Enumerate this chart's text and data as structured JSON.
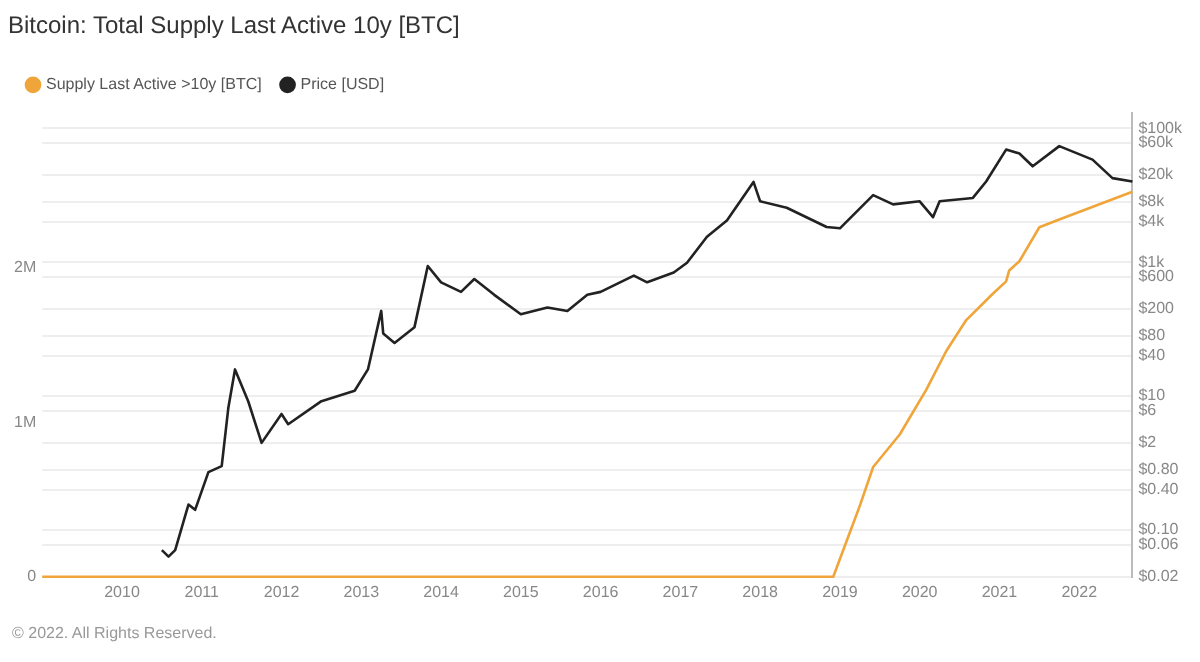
{
  "chart_data": {
    "type": "line",
    "title": "Bitcoin: Total Supply Last Active 10y [BTC]",
    "xlim": [
      "2009-01",
      "2022-09"
    ],
    "xticks": [
      "2010",
      "2011",
      "2012",
      "2013",
      "2014",
      "2015",
      "2016",
      "2017",
      "2018",
      "2019",
      "2020",
      "2021",
      "2022"
    ],
    "ylim": [
      0,
      3000000
    ],
    "yticks": [
      0,
      {
        "value": 1000000,
        "label": "1M"
      },
      {
        "value": 2000000,
        "label": "2M"
      }
    ],
    "log": "y2",
    "y2lim": [
      0.02,
      170000
    ],
    "y2ticks": [
      {
        "value": 0.02,
        "label": "$0.02"
      },
      {
        "value": 0.06,
        "label": "$0.06"
      },
      {
        "value": 0.1,
        "label": "$0.10"
      },
      {
        "value": 0.4,
        "label": "$0.40"
      },
      {
        "value": 0.8,
        "label": "$0.80"
      },
      {
        "value": 2,
        "label": "$2"
      },
      {
        "value": 6,
        "label": "$6"
      },
      {
        "value": 10,
        "label": "$10"
      },
      {
        "value": 40,
        "label": "$40"
      },
      {
        "value": 80,
        "label": "$80"
      },
      {
        "value": 200,
        "label": "$200"
      },
      {
        "value": 600,
        "label": "$600"
      },
      {
        "value": 1000,
        "label": "$1k"
      },
      {
        "value": 4000,
        "label": "$4k"
      },
      {
        "value": 8000,
        "label": "$8k"
      },
      {
        "value": 20000,
        "label": "$20k"
      },
      {
        "value": 60000,
        "label": "$60k"
      },
      {
        "value": 100000,
        "label": "$100k"
      }
    ],
    "grid": "y2",
    "legend": "top left",
    "marker": "none",
    "line_style": "solid",
    "annotations": [
      "© 2022. All Rights Reserved."
    ],
    "series": [
      {
        "name": "Supply Last Active >10y [BTC]",
        "color": "#f0a53a",
        "x": [
          "2009-01",
          "2018-12",
          "2019-04",
          "2019-06",
          "2019-10",
          "2020-02",
          "2020-05",
          "2020-08",
          "2020-12",
          "2021-02",
          "2021-02-15",
          "2021-04",
          "2021-07",
          "2021-10",
          "2022-09"
        ],
        "values": [
          0,
          0,
          460000,
          710000,
          920000,
          1210000,
          1460000,
          1660000,
          1830000,
          1910000,
          1980000,
          2040000,
          2260000,
          2310000,
          2490000
        ]
      },
      {
        "name": "Price [USD]",
        "color": "#222222",
        "axis": "y2",
        "x": [
          "2010-07",
          "2010-08",
          "2010-09",
          "2010-11",
          "2010-12",
          "2011-02",
          "2011-04",
          "2011-05",
          "2011-06",
          "2011-08",
          "2011-10",
          "2012-01",
          "2012-02",
          "2012-07",
          "2012-12",
          "2013-02",
          "2013-04",
          "2013-04-10",
          "2013-06",
          "2013-09",
          "2013-11",
          "2014-01",
          "2014-04",
          "2014-06",
          "2014-09",
          "2015-01",
          "2015-05",
          "2015-08",
          "2015-11",
          "2016-01",
          "2016-06",
          "2016-08",
          "2016-12",
          "2017-02",
          "2017-05",
          "2017-08",
          "2017-12",
          "2018-01",
          "2018-05",
          "2018-11",
          "2019-01",
          "2019-06",
          "2019-09",
          "2020-01",
          "2020-03",
          "2020-04",
          "2020-09",
          "2020-11",
          "2021-02",
          "2021-04",
          "2021-06",
          "2021-10",
          "2022-03",
          "2022-06",
          "2022-09"
        ],
        "values": [
          0.05,
          0.04,
          0.05,
          0.24,
          0.2,
          0.73,
          0.9,
          6.7,
          25,
          8.3,
          2,
          5.4,
          3.8,
          8.4,
          12,
          25,
          187,
          86,
          62,
          107,
          876,
          500,
          360,
          560,
          325,
          167,
          210,
          187,
          325,
          360,
          630,
          500,
          700,
          980,
          2400,
          4200,
          15800,
          8100,
          6500,
          3350,
          3200,
          10000,
          7300,
          8100,
          4700,
          8100,
          9100,
          16000,
          48000,
          42000,
          27000,
          54000,
          34000,
          18000,
          16000
        ]
      }
    ]
  }
}
